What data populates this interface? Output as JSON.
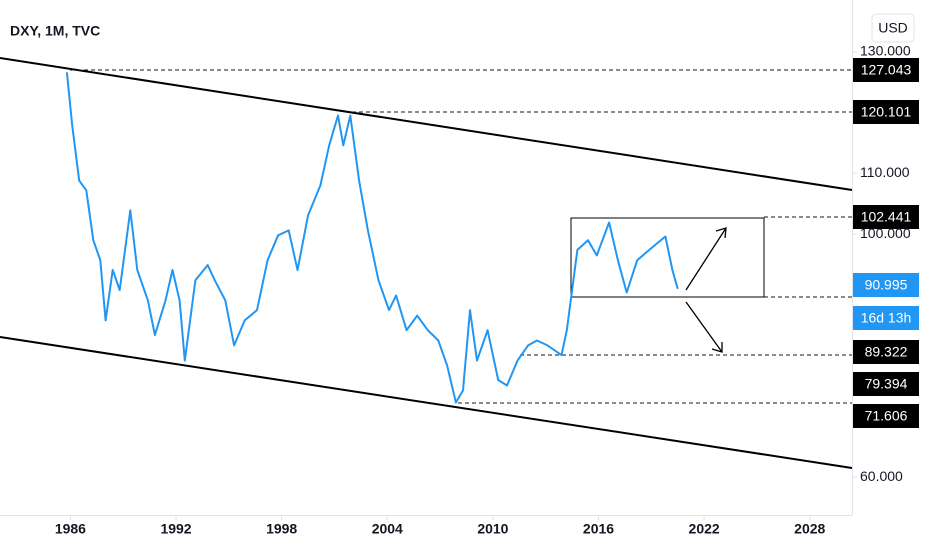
{
  "chart_data": {
    "type": "line",
    "title": "DXY, 1M, TVC",
    "currency": "USD",
    "x": [
      1985.8,
      1986.1,
      1986.5,
      1986.9,
      1987.3,
      1987.7,
      1988.0,
      1988.4,
      1988.8,
      1989.4,
      1989.8,
      1990.4,
      1990.8,
      1991.4,
      1991.8,
      1992.2,
      1992.5,
      1993.1,
      1993.8,
      1994.2,
      1994.8,
      1995.3,
      1995.9,
      1996.6,
      1997.2,
      1997.8,
      1998.4,
      1998.9,
      1999.5,
      2000.2,
      2000.7,
      2001.2,
      2001.5,
      2001.9,
      2002.4,
      2002.9,
      2003.5,
      2004.1,
      2004.5,
      2005.1,
      2005.7,
      2006.3,
      2006.9,
      2007.4,
      2007.9,
      2008.3,
      2008.7,
      2009.1,
      2009.7,
      2010.3,
      2010.8,
      2011.4,
      2012.0,
      2012.5,
      2013.1,
      2013.9,
      2014.2,
      2014.8,
      2015.4,
      2015.9,
      2016.6,
      2017.1,
      2017.6,
      2018.2,
      2019.0,
      2019.8,
      2020.2,
      2020.5
    ],
    "series": [
      {
        "name": "DXY",
        "color": "#2196f3",
        "values": [
          126.6,
          117.9,
          108.8,
          107.2,
          99.0,
          95.7,
          85.8,
          94.1,
          90.8,
          103.9,
          94.1,
          89.1,
          83.4,
          89.1,
          94.1,
          89.1,
          79.2,
          92.4,
          94.9,
          92.4,
          89.1,
          81.7,
          85.8,
          87.5,
          95.7,
          99.8,
          100.6,
          94.1,
          103.1,
          108.0,
          114.6,
          119.5,
          114.6,
          119.5,
          108.8,
          100.6,
          92.4,
          87.5,
          89.9,
          84.2,
          86.6,
          84.2,
          82.5,
          78.4,
          72.3,
          74.3,
          87.5,
          79.2,
          84.2,
          76.0,
          75.1,
          79.2,
          81.7,
          82.5,
          81.7,
          80.1,
          84.2,
          97.4,
          99.0,
          96.5,
          101.9,
          95.7,
          90.4,
          95.7,
          97.7,
          99.6,
          94.1,
          91.0
        ]
      }
    ],
    "xlim": [
      1982.0,
      2030.4
    ],
    "ylim": [
      53.8,
      138.5
    ],
    "xticks": [
      1986,
      1992,
      1998,
      2004,
      2010,
      2016,
      2022,
      2028
    ],
    "yticks": [
      {
        "value": 60,
        "label": "60.000"
      },
      {
        "value": 100,
        "label": "100.000"
      },
      {
        "value": 110,
        "label": "110.000"
      },
      {
        "value": 130,
        "label": "130.000"
      }
    ],
    "price_labels": [
      "127.043",
      "120.101",
      "102.441",
      "90.995",
      "89.322",
      "79.394",
      "71.606"
    ],
    "countdown": "16d 13h"
  }
}
